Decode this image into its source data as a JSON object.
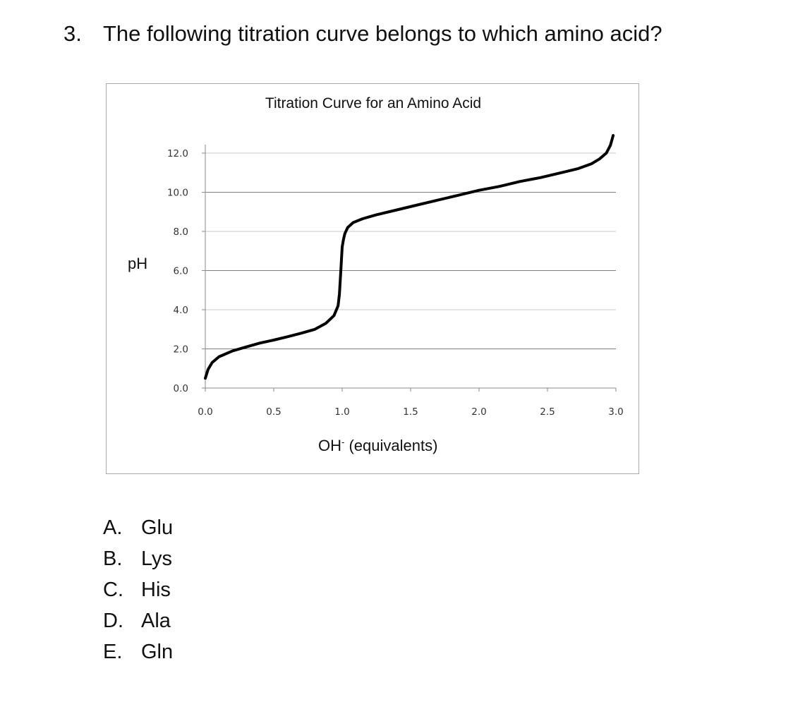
{
  "question": {
    "number": "3.",
    "text": "The following titration curve belongs to which amino acid?"
  },
  "chart_data": {
    "type": "line",
    "title": "Titration Curve for an Amino Acid",
    "xlabel": "OH",
    "xlabel_superscript": "-",
    "xlabel_suffix": " (equivalents)",
    "ylabel": "pH",
    "xlim": [
      0,
      3
    ],
    "ylim": [
      0,
      12
    ],
    "x_ticks": [
      "0.0",
      "0.5",
      "1.0",
      "1.5",
      "2.0",
      "2.5",
      "3.0"
    ],
    "y_ticks": [
      "0.0",
      "2.0",
      "4.0",
      "6.0",
      "8.0",
      "10.0",
      "12.0"
    ],
    "grid": true,
    "legend": false,
    "line_color": "#000000",
    "series": [
      {
        "x": [
          0.0,
          0.02,
          0.05,
          0.1,
          0.2,
          0.3,
          0.4,
          0.5,
          0.6,
          0.7,
          0.8,
          0.88,
          0.94,
          0.97,
          0.98,
          0.99,
          1.0,
          1.01,
          1.02,
          1.04,
          1.08,
          1.15,
          1.25,
          1.4,
          1.55,
          1.7,
          1.85,
          2.0,
          2.15,
          2.3,
          2.45,
          2.6,
          2.72,
          2.82,
          2.88,
          2.93,
          2.96,
          2.98
        ],
        "y": [
          0.5,
          0.95,
          1.3,
          1.6,
          1.9,
          2.1,
          2.3,
          2.45,
          2.62,
          2.8,
          3.0,
          3.3,
          3.7,
          4.2,
          4.8,
          6.0,
          7.2,
          7.6,
          7.9,
          8.2,
          8.45,
          8.65,
          8.85,
          9.1,
          9.35,
          9.6,
          9.85,
          10.1,
          10.3,
          10.55,
          10.75,
          11.0,
          11.2,
          11.45,
          11.7,
          12.0,
          12.4,
          12.9
        ]
      }
    ]
  },
  "options": [
    {
      "letter": "A.",
      "text": "Glu"
    },
    {
      "letter": "B.",
      "text": "Lys"
    },
    {
      "letter": "C.",
      "text": "His"
    },
    {
      "letter": "D.",
      "text": "Ala"
    },
    {
      "letter": "E.",
      "text": "Gln"
    }
  ]
}
